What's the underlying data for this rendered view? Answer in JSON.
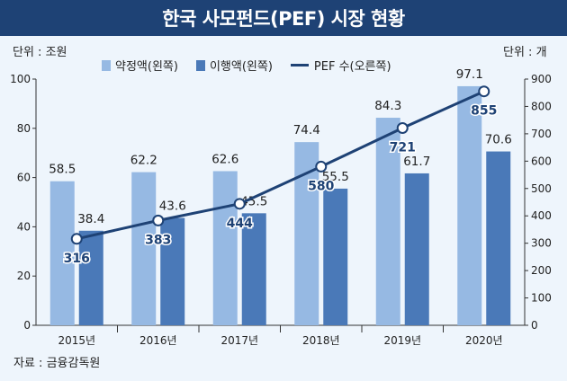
{
  "title": "한국 사모펀드(PEF) 시장 현황",
  "unit_left": "단위 : 조원",
  "unit_right": "단위 : 개",
  "source": "자료 : 금융감독원",
  "colors": {
    "title_bg": "#1e4275",
    "panel_bg": "#eef5fc",
    "committed": "#96b9e3",
    "executed": "#4a79b8",
    "line": "#1e4275"
  },
  "legend": {
    "committed": "약정액(왼쪽)",
    "executed": "이행액(왼쪽)",
    "pef": "PEF 수(오른쪽)"
  },
  "chart_data": {
    "type": "bar",
    "categories": [
      "2015년",
      "2016년",
      "2017년",
      "2018년",
      "2019년",
      "2020년"
    ],
    "series": [
      {
        "name": "약정액(왼쪽)",
        "type": "bar",
        "axis": "left",
        "values": [
          58.5,
          62.2,
          62.6,
          74.4,
          84.3,
          97.1
        ],
        "labels": [
          "58.5",
          "62.2",
          "62.6",
          "74.4",
          "84.3",
          "97.1"
        ]
      },
      {
        "name": "이행액(왼쪽)",
        "type": "bar",
        "axis": "left",
        "values": [
          38.4,
          43.6,
          45.5,
          55.5,
          61.7,
          70.6
        ],
        "labels": [
          "38.4",
          "43.6",
          "45.5",
          "55.5",
          "61.7",
          "70.6"
        ]
      },
      {
        "name": "PEF 수(오른쪽)",
        "type": "line",
        "axis": "right",
        "values": [
          316,
          383,
          444,
          580,
          721,
          855
        ],
        "labels": [
          "316",
          "383",
          "444",
          "580",
          "721",
          "855"
        ]
      }
    ],
    "ylim_left": [
      0,
      100
    ],
    "yticks_left": [
      "0",
      "20",
      "40",
      "60",
      "80",
      "100"
    ],
    "ylim_right": [
      0,
      900
    ],
    "yticks_right": [
      "0",
      "100",
      "200",
      "300",
      "400",
      "500",
      "600",
      "700",
      "800",
      "900"
    ],
    "grid": false,
    "legend_position": "top"
  }
}
